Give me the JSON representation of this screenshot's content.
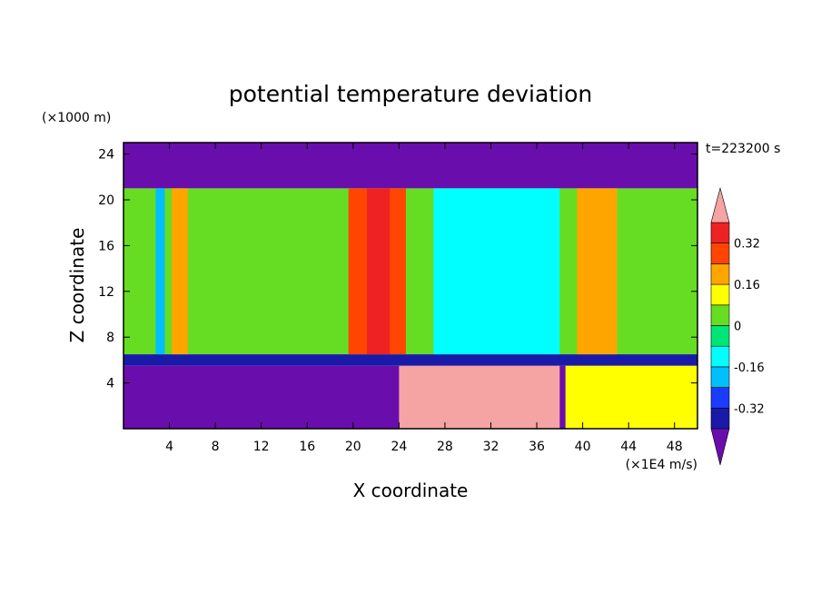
{
  "chart_data": {
    "type": "heatmap",
    "title": "potential temperature deviation",
    "xlabel": "X coordinate",
    "ylabel": "Z coordinate",
    "x_unit": "(×1E4 m/s)",
    "y_unit": "(×1000 m)",
    "time_label": "t=223200 s",
    "xlim": [
      0,
      50
    ],
    "ylim": [
      0,
      25
    ],
    "x_ticks": [
      "4",
      "8",
      "12",
      "16",
      "20",
      "24",
      "28",
      "32",
      "36",
      "40",
      "44",
      "48"
    ],
    "y_ticks": [
      "4",
      "8",
      "12",
      "16",
      "20",
      "24"
    ],
    "grid": false,
    "colorbar": {
      "levels": [
        -0.4,
        -0.32,
        -0.24,
        -0.16,
        -0.08,
        0,
        0.08,
        0.16,
        0.24,
        0.32,
        0.4
      ],
      "labels": [
        "0.32",
        "0.16",
        "0",
        "-0.16",
        "-0.32"
      ],
      "colors": [
        "#6a0dad",
        "#1a1aa8",
        "#1a3cff",
        "#00bfff",
        "#00ffff",
        "#00e676",
        "#66dd22",
        "#ffff00",
        "#ffa500",
        "#ff4500",
        "#ee2222",
        "#f5a3a3"
      ]
    },
    "regions": [
      {
        "x": [
          0,
          50
        ],
        "z": [
          21,
          25
        ],
        "value": -0.45
      },
      {
        "x": [
          0,
          50
        ],
        "z": [
          6.5,
          21
        ],
        "value": 0.02
      },
      {
        "x": [
          0,
          50
        ],
        "z": [
          5.5,
          6.5
        ],
        "value": -0.36
      },
      {
        "x": [
          0,
          50
        ],
        "z": [
          0,
          5.5
        ],
        "value": -0.42
      },
      {
        "x": [
          2.8,
          3.6
        ],
        "z": [
          6.5,
          21
        ],
        "value": -0.2
      },
      {
        "x": [
          4.2,
          5.6
        ],
        "z": [
          6.5,
          21
        ],
        "value": 0.2
      },
      {
        "x": [
          19.6,
          24.6
        ],
        "z": [
          6.5,
          21
        ],
        "value": 0.24
      },
      {
        "x": [
          21.2,
          23.2
        ],
        "z": [
          6.5,
          21
        ],
        "value": 0.33
      },
      {
        "x": [
          27,
          38
        ],
        "z": [
          6.5,
          21
        ],
        "value": -0.1
      },
      {
        "x": [
          39.5,
          43
        ],
        "z": [
          6.5,
          21
        ],
        "value": 0.22
      },
      {
        "x": [
          24,
          38
        ],
        "z": [
          0,
          5.5
        ],
        "value": 0.45
      },
      {
        "x": [
          38.5,
          50
        ],
        "z": [
          0,
          5.5
        ],
        "value": 0.1
      }
    ]
  }
}
